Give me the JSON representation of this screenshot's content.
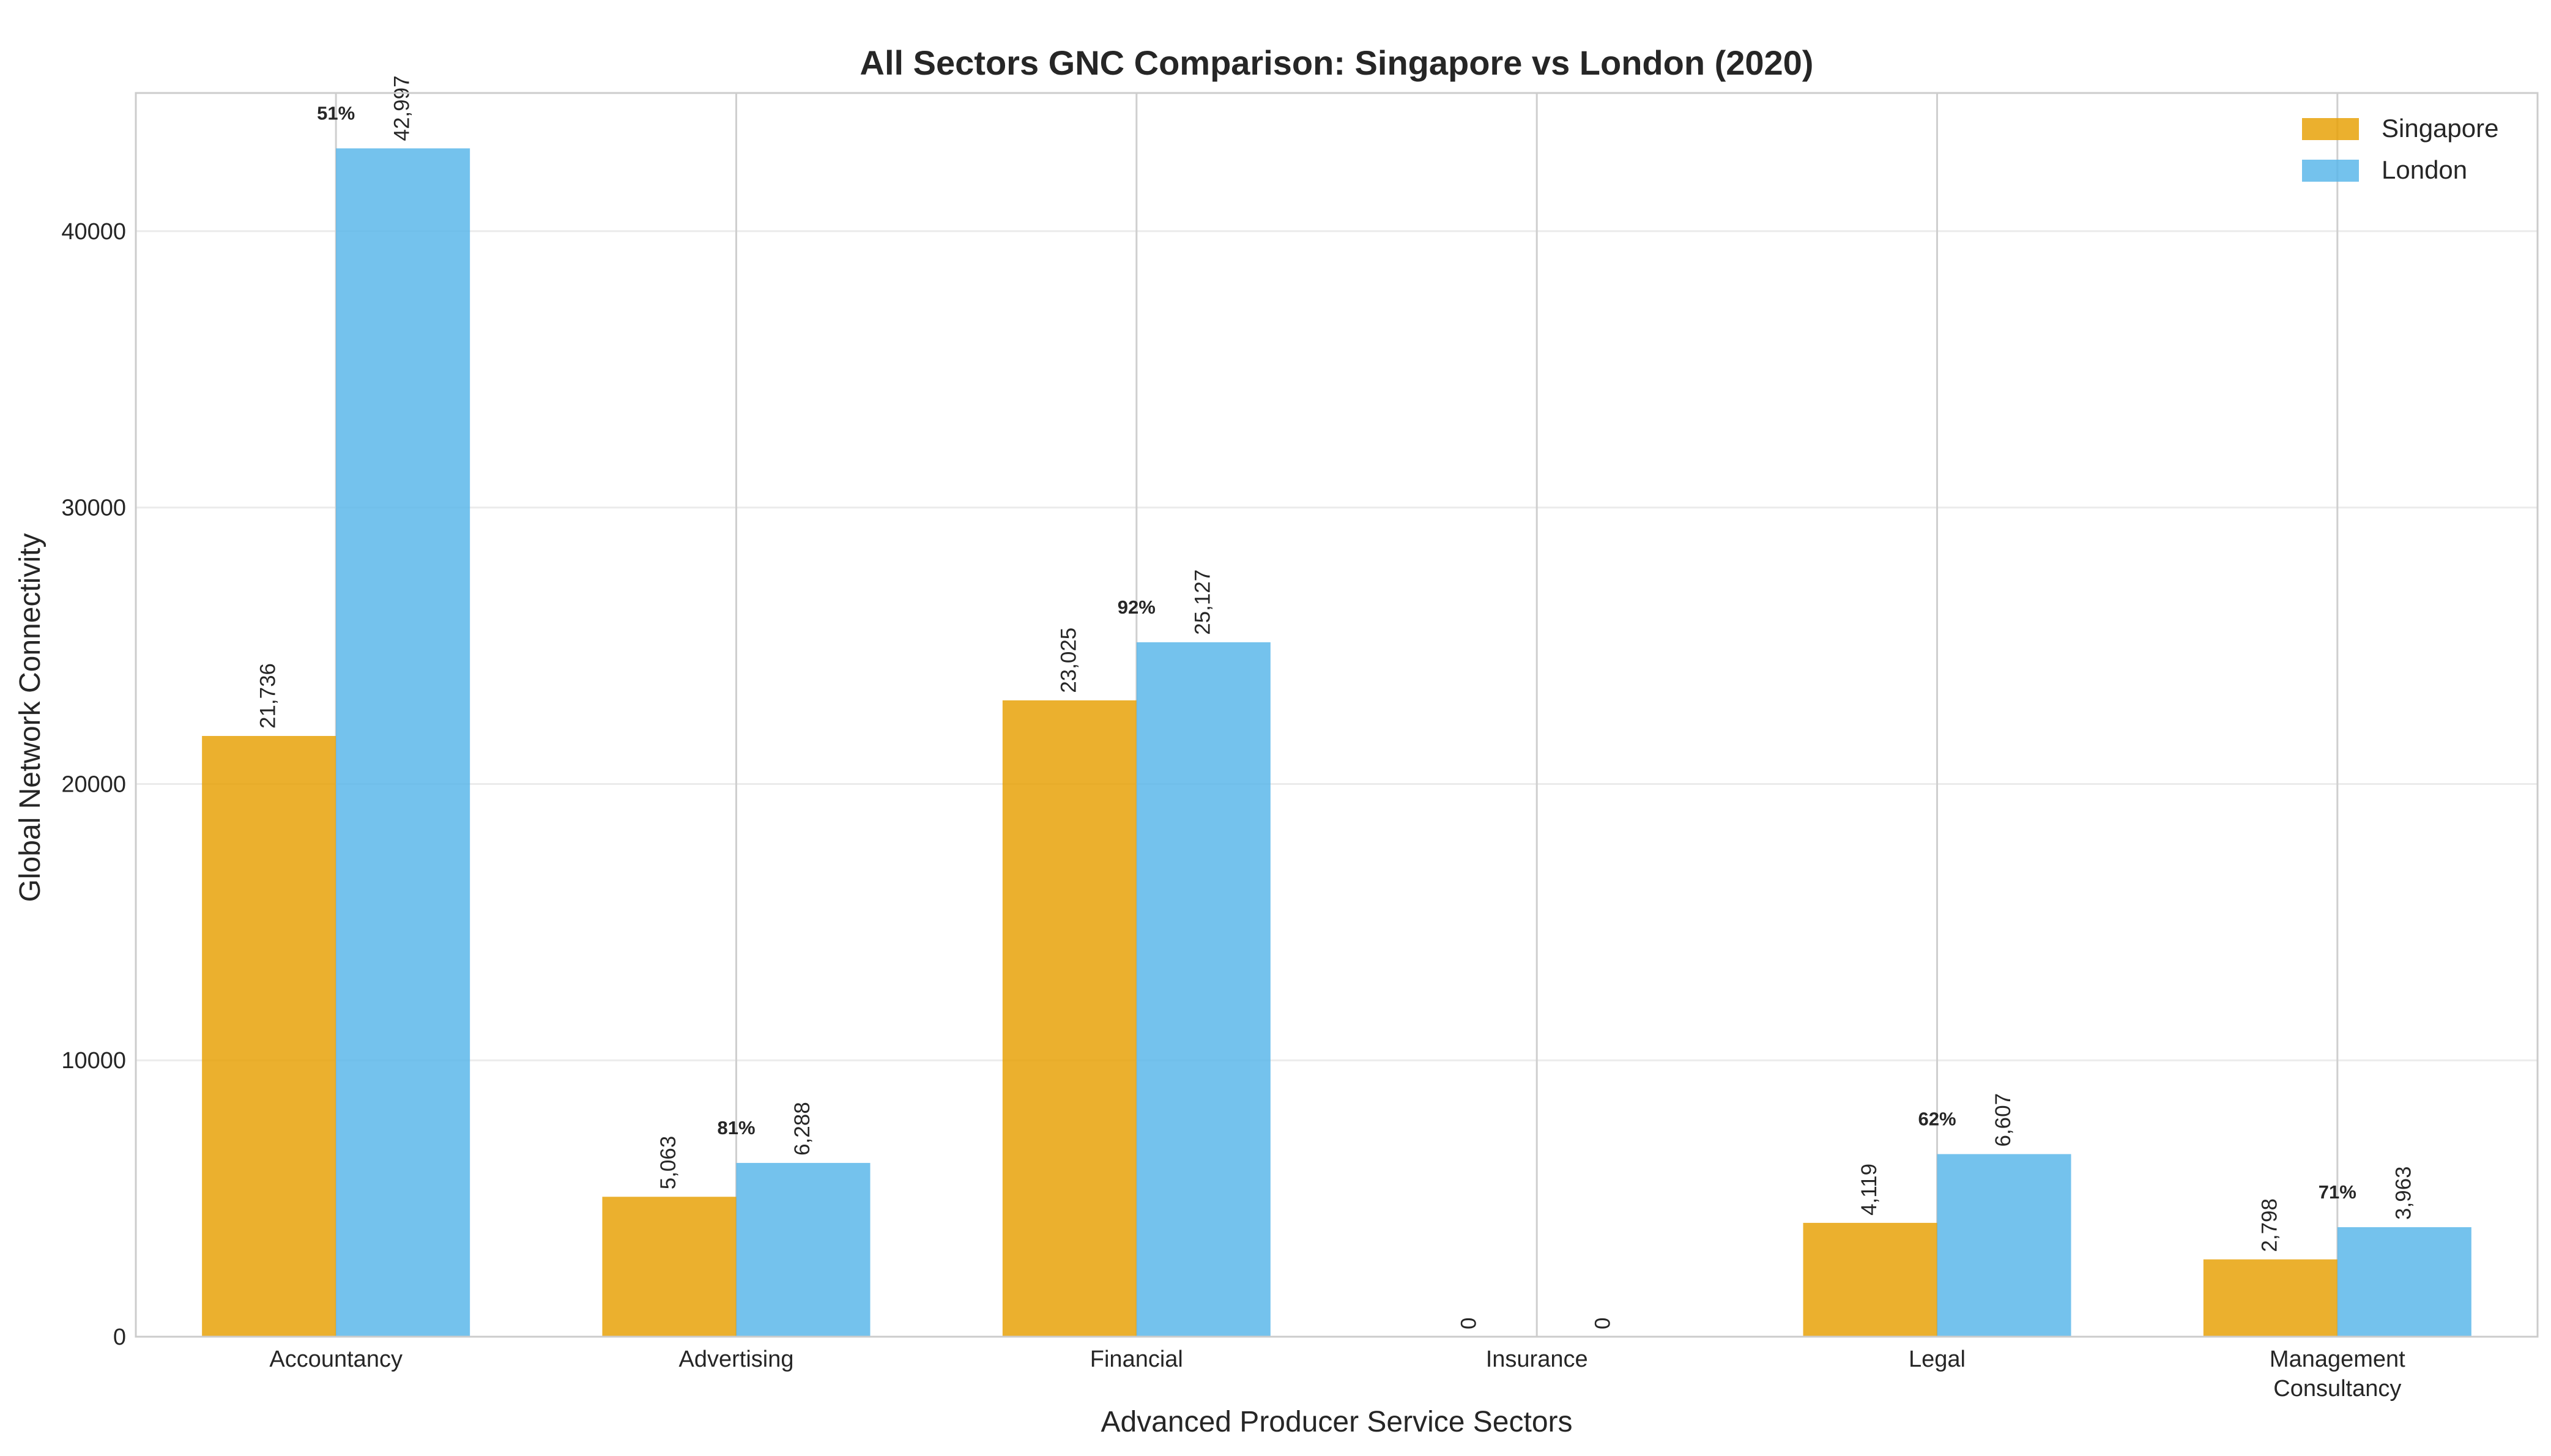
{
  "chart_data": {
    "type": "bar",
    "title": "All Sectors GNC Comparison: Singapore vs London (2020)",
    "xlabel": "Advanced Producer Service Sectors",
    "ylabel": "Global Network Connectivity",
    "categories": [
      [
        "Accountancy"
      ],
      [
        "Advertising"
      ],
      [
        "Financial"
      ],
      [
        "Insurance"
      ],
      [
        "Legal"
      ],
      [
        "Management",
        "Consultancy"
      ]
    ],
    "series": [
      {
        "name": "Singapore",
        "color": "#E69F00",
        "values": [
          21736,
          5063,
          23025,
          0,
          4119,
          2798
        ],
        "labels": [
          "21,736",
          "5,063",
          "23,025",
          "0",
          "4,119",
          "2,798"
        ]
      },
      {
        "name": "London",
        "color": "#56B4E9",
        "values": [
          42997,
          6288,
          25127,
          0,
          6607,
          3963
        ],
        "labels": [
          "42,997",
          "6,288",
          "25,127",
          "0",
          "6,607",
          "3,963"
        ]
      }
    ],
    "ratio_labels": [
      "51%",
      "81%",
      "92%",
      "",
      "62%",
      "71%"
    ],
    "ylim": [
      0,
      45000
    ],
    "yticks": [
      0,
      10000,
      20000,
      30000,
      40000
    ],
    "ytick_labels": [
      "0",
      "10000",
      "20000",
      "30000",
      "40000"
    ],
    "grid": true,
    "legend_position": "top-right"
  }
}
